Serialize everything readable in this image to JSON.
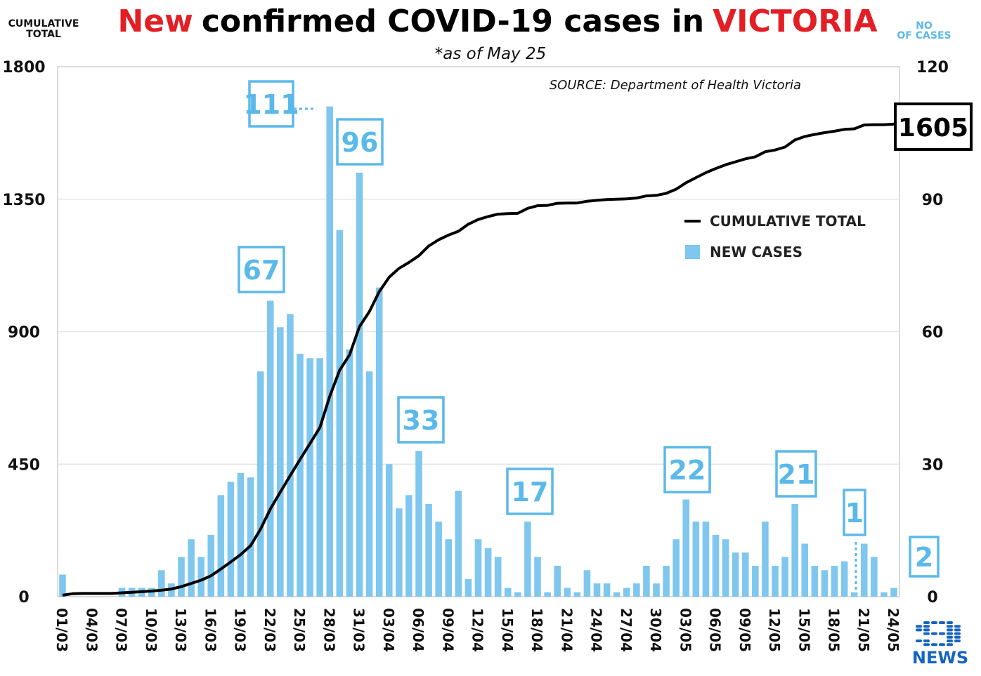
{
  "chart_data": {
    "type": "bar+line",
    "title_parts": [
      "New",
      "confirmed COVID-19 cases in",
      "VICTORIA"
    ],
    "subtitle": "*as of May 25",
    "source": "SOURCE: Department of Health Victoria",
    "left_axis_caption": [
      "CUMULATIVE",
      "TOTAL"
    ],
    "right_axis_caption": [
      "NO",
      "OF CASES"
    ],
    "left_ticks": [
      0,
      450,
      900,
      1350,
      1800
    ],
    "right_ticks": [
      0,
      30,
      60,
      90,
      120
    ],
    "ylim_left": [
      0,
      1800
    ],
    "ylim_right": [
      0,
      120
    ],
    "x_tick_labels": [
      "01/03",
      "04/03",
      "07/03",
      "10/03",
      "13/03",
      "16/03",
      "19/03",
      "22/03",
      "25/03",
      "28/03",
      "31/03",
      "03/04",
      "06/04",
      "09/04",
      "12/04",
      "15/04",
      "18/04",
      "21/04",
      "24/04",
      "27/04",
      "30/04",
      "03/05",
      "06/05",
      "09/05",
      "12/05",
      "15/05",
      "18/05",
      "21/05",
      "24/05"
    ],
    "legend": {
      "line": "CUMULATIVE TOTAL",
      "bar": "NEW CASES"
    },
    "colors": {
      "bar": "#7fc7ee",
      "line": "#000000",
      "accent": "#e31e24",
      "annotation": "#5bb9ea",
      "grid": "#e6e6e6"
    },
    "series": [
      {
        "name": "NEW CASES",
        "axis": "right",
        "values": [
          5,
          0,
          0,
          0,
          0,
          0,
          2,
          2,
          2,
          2,
          6,
          3,
          9,
          13,
          9,
          14,
          23,
          26,
          28,
          27,
          51,
          67,
          61,
          64,
          55,
          54,
          54,
          111,
          83,
          56,
          96,
          51,
          70,
          30,
          20,
          23,
          33,
          21,
          17,
          13,
          24,
          4,
          13,
          11,
          9,
          2,
          1,
          17,
          9,
          1,
          7,
          2,
          1,
          6,
          3,
          3,
          1,
          2,
          3,
          7,
          3,
          7,
          13,
          22,
          17,
          17,
          14,
          13,
          10,
          10,
          7,
          17,
          7,
          9,
          21,
          12,
          7,
          6,
          7,
          8,
          1,
          12,
          9,
          1,
          2
        ]
      },
      {
        "name": "CUMULATIVE TOTAL",
        "axis": "left",
        "values": [
          5,
          10,
          11,
          11,
          11,
          11,
          13,
          15,
          17,
          19,
          22,
          26,
          34,
          45,
          56,
          71,
          94,
          118,
          143,
          173,
          229,
          298,
          355,
          411,
          466,
          520,
          574,
          681,
          769,
          821,
          917,
          968,
          1036,
          1085,
          1115,
          1135,
          1158,
          1191,
          1212,
          1228,
          1241,
          1265,
          1281,
          1291,
          1299,
          1301,
          1302,
          1319,
          1328,
          1329,
          1336,
          1337,
          1337,
          1343,
          1346,
          1349,
          1350,
          1351,
          1354,
          1361,
          1363,
          1370,
          1384,
          1406,
          1423,
          1440,
          1454,
          1467,
          1477,
          1487,
          1494,
          1511,
          1517,
          1527,
          1551,
          1563,
          1570,
          1576,
          1581,
          1587,
          1589,
          1602,
          1603,
          1603,
          1605
        ]
      }
    ],
    "annotations": [
      {
        "label": "111",
        "day_index": 27
      },
      {
        "label": "96",
        "day_index": 30
      },
      {
        "label": "67",
        "day_index": 21
      },
      {
        "label": "33",
        "day_index": 36
      },
      {
        "label": "17",
        "day_index": 47
      },
      {
        "label": "22",
        "day_index": 63
      },
      {
        "label": "21",
        "day_index": 74
      },
      {
        "label": "1",
        "day_index": 80
      },
      {
        "label": "2",
        "day_index": 84
      }
    ],
    "latest_total_label": "1605",
    "logo_text": "NEWS"
  }
}
